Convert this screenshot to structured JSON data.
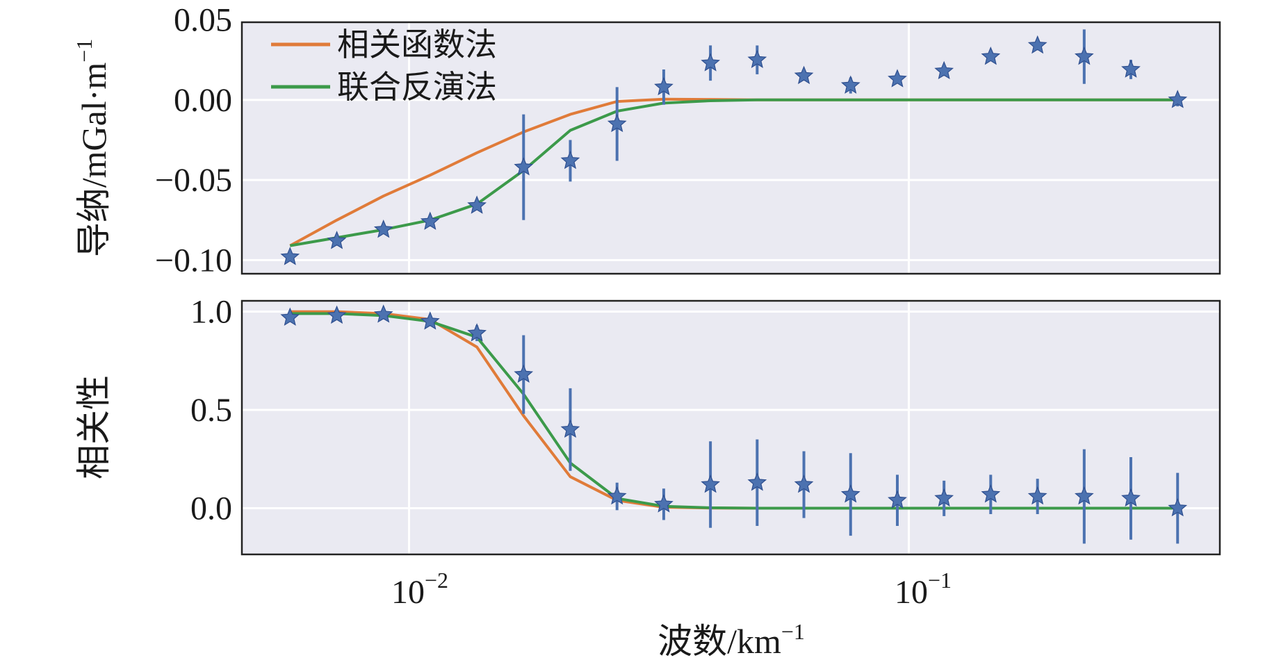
{
  "chart_data": [
    {
      "type": "line",
      "ylabel": "导纳/mGal·m",
      "ylabel_sup": "−1",
      "xscale": "log",
      "ylim": [
        -0.1085,
        0.0485
      ],
      "yticks": [
        0.05,
        0.0,
        -0.05,
        -0.1
      ],
      "ytick_labels": [
        "0.05",
        "0.00",
        "−0.05",
        "−0.10"
      ],
      "grid": true,
      "legend_placement": "top-left",
      "series": [
        {
          "name": "相关函数法",
          "color": "#E07B39",
          "values": [
            -0.091,
            -0.075,
            -0.06,
            -0.047,
            -0.033,
            -0.02,
            -0.009,
            -0.001,
            0.0005,
            0.0003,
            0,
            0,
            0,
            0,
            0,
            0,
            0,
            0,
            0,
            0
          ]
        },
        {
          "name": "联合反演法",
          "color": "#3C9A4A",
          "values": [
            -0.091,
            -0.086,
            -0.081,
            -0.075,
            -0.065,
            -0.044,
            -0.019,
            -0.007,
            -0.002,
            -0.0005,
            0,
            0,
            0,
            0,
            0,
            0,
            0,
            0,
            0,
            0
          ]
        },
        {
          "type": "errorbar",
          "color": "#4C72B0",
          "marker": "star",
          "values": [
            -0.098,
            -0.088,
            -0.081,
            -0.076,
            -0.066,
            -0.042,
            -0.038,
            -0.015,
            0.008,
            0.023,
            0.025,
            0.015,
            0.009,
            0.013,
            0.018,
            0.027,
            0.034,
            0.027,
            0.019,
            0.0
          ],
          "errors": [
            0.002,
            0.003,
            0.002,
            0.003,
            0.002,
            0.033,
            0.013,
            0.023,
            0.011,
            0.011,
            0.009,
            0.003,
            0.005,
            0.002,
            0.003,
            0.002,
            0.003,
            0.017,
            0.006,
            0.004
          ]
        }
      ]
    },
    {
      "type": "line",
      "ylabel": "相关性",
      "xlabel": "波数/km",
      "xlabel_sup": "−1",
      "xscale": "log",
      "xlim": [
        0.00463,
        0.419
      ],
      "xticks": [
        0.01,
        0.1
      ],
      "xtick_labels": [
        {
          "base": "10",
          "exp": "−2"
        },
        {
          "base": "10",
          "exp": "−1"
        }
      ],
      "ylim": [
        -0.235,
        1.055
      ],
      "yticks": [
        1.0,
        0.5,
        0.0
      ],
      "ytick_labels": [
        "1.0",
        "0.5",
        "0.0"
      ],
      "grid": true,
      "series": [
        {
          "name": "相关函数法",
          "color": "#E07B39",
          "values": [
            1.0,
            1.0,
            0.99,
            0.96,
            0.82,
            0.47,
            0.16,
            0.04,
            0.005,
            0.001,
            0,
            0,
            0,
            0,
            0,
            0,
            0,
            0,
            0,
            0
          ]
        },
        {
          "name": "联合反演法",
          "color": "#3C9A4A",
          "values": [
            0.99,
            0.99,
            0.98,
            0.95,
            0.87,
            0.58,
            0.23,
            0.05,
            0.01,
            0.002,
            0,
            0,
            0,
            0,
            0,
            0,
            0,
            0,
            0,
            0
          ]
        },
        {
          "type": "errorbar",
          "color": "#4C72B0",
          "marker": "star",
          "values": [
            0.97,
            0.98,
            0.985,
            0.95,
            0.89,
            0.68,
            0.4,
            0.06,
            0.02,
            0.12,
            0.13,
            0.12,
            0.07,
            0.04,
            0.05,
            0.07,
            0.06,
            0.06,
            0.05,
            0.0
          ],
          "errors": [
            0.01,
            0.01,
            0.01,
            0.01,
            0.04,
            0.2,
            0.21,
            0.07,
            0.08,
            0.22,
            0.22,
            0.17,
            0.21,
            0.13,
            0.09,
            0.1,
            0.09,
            0.24,
            0.21,
            0.18
          ]
        }
      ]
    }
  ],
  "x": [
    0.00578,
    0.00717,
    0.00889,
    0.01102,
    0.01367,
    0.01695,
    0.02102,
    0.02607,
    0.03233,
    0.04009,
    0.04972,
    0.06166,
    0.07647,
    0.09483,
    0.1176,
    0.1458,
    0.1809,
    0.2243,
    0.2781,
    0.3449
  ],
  "background": "#EAEAF2"
}
